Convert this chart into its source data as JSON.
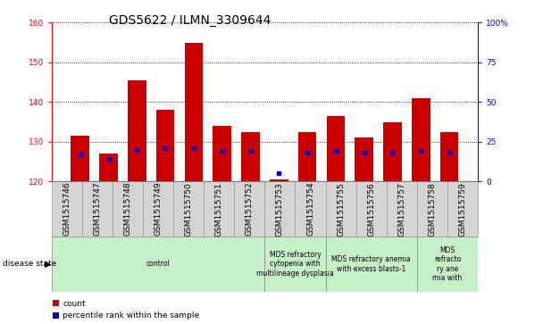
{
  "title": "GDS5622 / ILMN_3309644",
  "samples": [
    "GSM1515746",
    "GSM1515747",
    "GSM1515748",
    "GSM1515749",
    "GSM1515750",
    "GSM1515751",
    "GSM1515752",
    "GSM1515753",
    "GSM1515754",
    "GSM1515755",
    "GSM1515756",
    "GSM1515757",
    "GSM1515758",
    "GSM1515759"
  ],
  "counts": [
    131.5,
    127.0,
    145.5,
    138.0,
    155.0,
    134.0,
    132.5,
    120.5,
    132.5,
    136.5,
    131.0,
    135.0,
    141.0,
    132.5
  ],
  "percentile_ranks": [
    17,
    14,
    20,
    21,
    21,
    19,
    19,
    5,
    18,
    19,
    18,
    18,
    19,
    18
  ],
  "ymin": 120,
  "ymax": 160,
  "yticks": [
    120,
    130,
    140,
    150,
    160
  ],
  "y2min": 0,
  "y2max": 100,
  "y2ticks": [
    0,
    25,
    50,
    75,
    100
  ],
  "bar_color": "#cc0000",
  "dot_color": "#0000cc",
  "disease_groups": [
    {
      "label": "control",
      "start": 0,
      "end": 7
    },
    {
      "label": "MDS refractory\ncytopenia with\nmultilineage dysplasia",
      "start": 7,
      "end": 9
    },
    {
      "label": "MDS refractory anemia\nwith excess blasts-1",
      "start": 9,
      "end": 12
    },
    {
      "label": "MDS\nrefracto\nry ane\nmia with",
      "start": 12,
      "end": 14
    }
  ],
  "group_color": "#c8f0c8",
  "cell_color": "#d4d4d4",
  "cell_border": "#888888",
  "disease_state_label": "disease state",
  "legend_count": "count",
  "legend_pct": "percentile rank within the sample",
  "title_fontsize": 10,
  "tick_fontsize": 6.5,
  "label_fontsize": 7.5
}
